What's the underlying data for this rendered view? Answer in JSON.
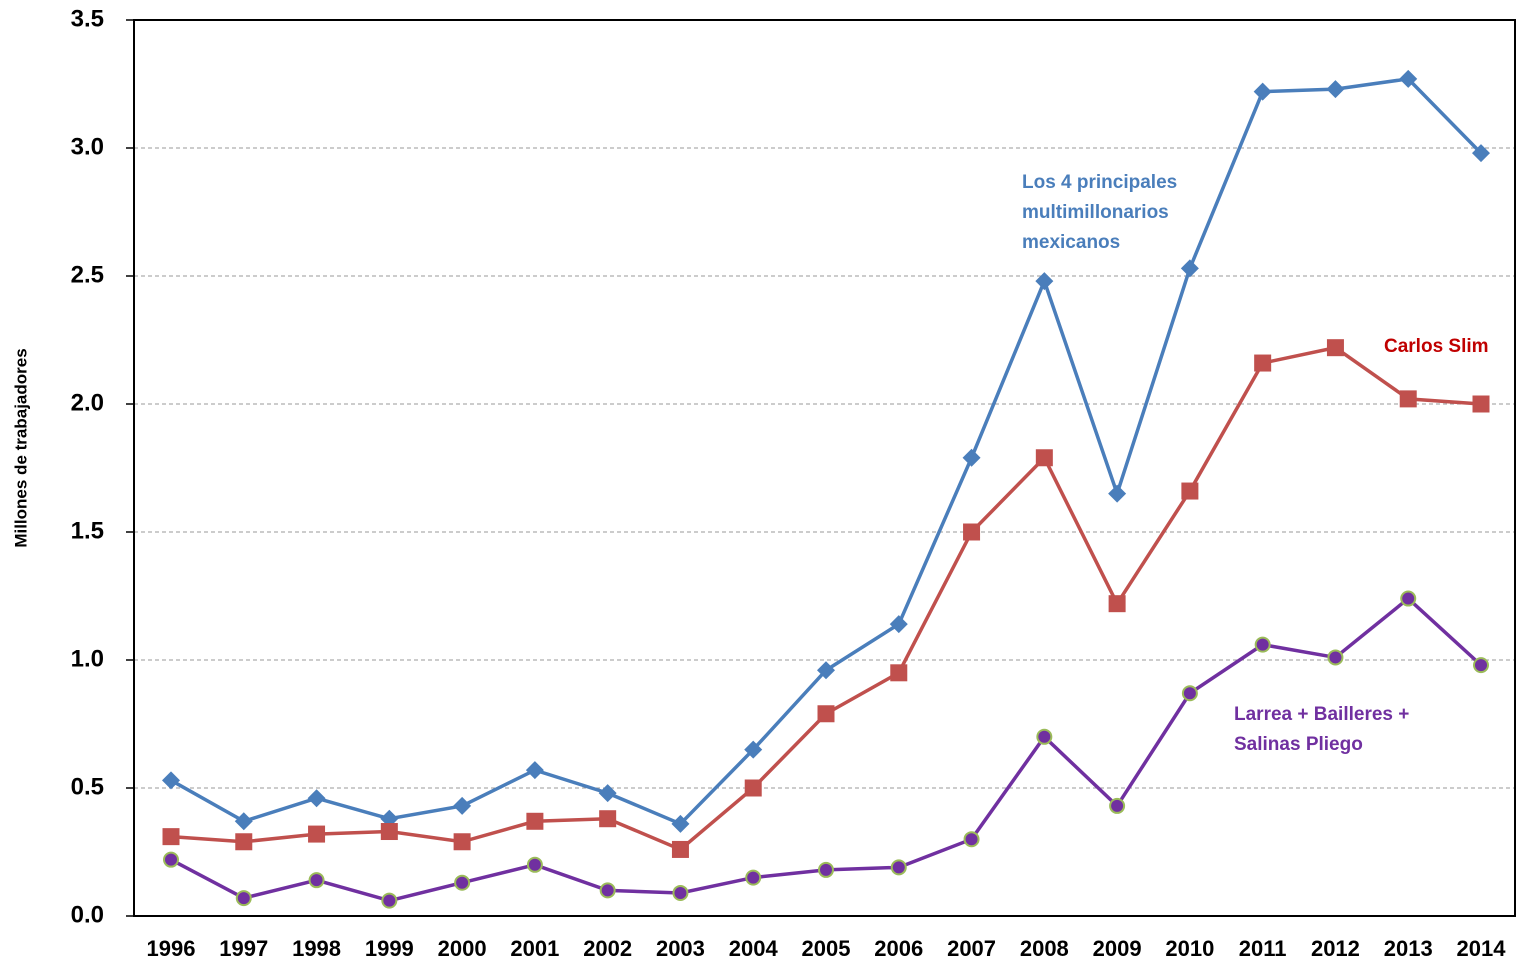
{
  "chart_data": {
    "type": "line",
    "y_label": "Millones  de trabajadores",
    "categories": [
      "1996",
      "1997",
      "1998",
      "1999",
      "2000",
      "2001",
      "2002",
      "2003",
      "2004",
      "2005",
      "2006",
      "2007",
      "2008",
      "2009",
      "2010",
      "2011",
      "2012",
      "2013",
      "2014"
    ],
    "series": [
      {
        "name": "Los 4 principales multimillonarios mexicanos",
        "color": "#4a7ebb",
        "marker": "diamond",
        "values": [
          0.53,
          0.37,
          0.46,
          0.38,
          0.43,
          0.57,
          0.48,
          0.36,
          0.65,
          0.96,
          1.14,
          1.79,
          2.48,
          1.65,
          2.53,
          3.22,
          3.23,
          3.27,
          2.98
        ]
      },
      {
        "name": "Carlos Slim",
        "color": "#c0504d",
        "marker": "square",
        "values": [
          0.31,
          0.29,
          0.32,
          0.33,
          0.29,
          0.37,
          0.38,
          0.26,
          0.5,
          0.79,
          0.95,
          1.5,
          1.79,
          1.22,
          1.66,
          2.16,
          2.22,
          2.02,
          2.0
        ]
      },
      {
        "name": "Larrea + Bailleres + Salinas Pliego",
        "color": "#7030a0",
        "marker": "circle",
        "values": [
          0.22,
          0.07,
          0.14,
          0.06,
          0.13,
          0.2,
          0.1,
          0.09,
          0.15,
          0.18,
          0.19,
          0.3,
          0.7,
          0.43,
          0.87,
          1.06,
          1.01,
          1.24,
          0.98
        ]
      }
    ],
    "ylim": [
      0,
      3.5
    ],
    "yticks": [
      {
        "value": 0,
        "label": "0.0"
      },
      0.5,
      {
        "value": 1,
        "label": "1.0"
      },
      1.5,
      {
        "value": 2,
        "label": "2.0"
      },
      2.5,
      {
        "value": 3,
        "label": "3.0"
      },
      3.5
    ],
    "grid": true
  }
}
